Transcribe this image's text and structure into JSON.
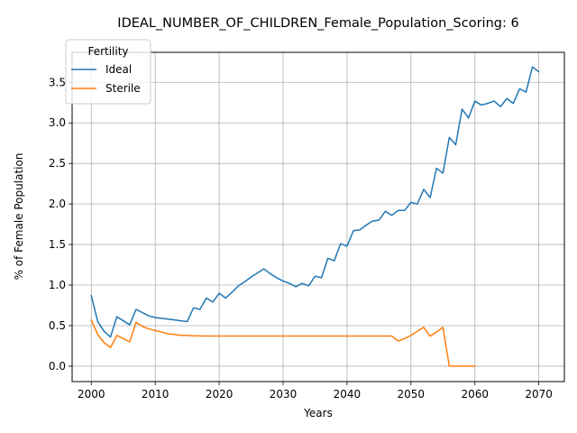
{
  "chart_data": {
    "type": "line",
    "title": "IDEAL_NUMBER_OF_CHILDREN_Female_Population_Scoring: 6",
    "xlabel": "Years",
    "ylabel": "% of Female Population",
    "xlim": [
      1997,
      2074
    ],
    "ylim": [
      -0.19,
      3.87
    ],
    "xticks": [
      2000,
      2010,
      2020,
      2030,
      2040,
      2050,
      2060,
      2070
    ],
    "yticks": [
      0.0,
      0.5,
      1.0,
      1.5,
      2.0,
      2.5,
      3.0,
      3.5
    ],
    "ytick_labels": [
      "0.0",
      "0.5",
      "1.0",
      "1.5",
      "2.0",
      "2.5",
      "3.0",
      "3.5"
    ],
    "grid": true,
    "legend": {
      "title": "Fertility",
      "placement": "top-left"
    },
    "series": [
      {
        "name": "Ideal",
        "color": "#1f77b4",
        "x": [
          2000,
          2001,
          2002,
          2003,
          2004,
          2005,
          2006,
          2007,
          2008,
          2009,
          2010,
          2011,
          2012,
          2013,
          2014,
          2015,
          2016,
          2017,
          2018,
          2019,
          2020,
          2021,
          2022,
          2023,
          2024,
          2025,
          2026,
          2027,
          2028,
          2029,
          2030,
          2031,
          2032,
          2033,
          2034,
          2035,
          2036,
          2037,
          2038,
          2039,
          2040,
          2041,
          2042,
          2043,
          2044,
          2045,
          2046,
          2047,
          2048,
          2049,
          2050,
          2051,
          2052,
          2053,
          2054,
          2055,
          2056,
          2057,
          2058,
          2059,
          2060,
          2061,
          2062,
          2063,
          2064,
          2065,
          2066,
          2067,
          2068,
          2069,
          2070
        ],
        "y": [
          0.87,
          0.55,
          0.43,
          0.36,
          0.61,
          0.56,
          0.51,
          0.7,
          0.66,
          0.62,
          0.6,
          0.59,
          0.58,
          0.57,
          0.56,
          0.55,
          0.72,
          0.7,
          0.84,
          0.79,
          0.9,
          0.84,
          0.91,
          0.99,
          1.04,
          1.1,
          1.15,
          1.2,
          1.14,
          1.09,
          1.05,
          1.02,
          0.98,
          1.02,
          0.99,
          1.11,
          1.09,
          1.33,
          1.3,
          1.51,
          1.48,
          1.67,
          1.68,
          1.74,
          1.79,
          1.8,
          1.91,
          1.86,
          1.92,
          1.92,
          2.02,
          2.0,
          2.18,
          2.08,
          2.44,
          2.38,
          2.82,
          2.73,
          3.17,
          3.06,
          3.27,
          3.22,
          3.24,
          3.27,
          3.2,
          3.3,
          3.24,
          3.42,
          3.38,
          3.69,
          3.63
        ]
      },
      {
        "name": "Sterile",
        "color": "#ff7f0e",
        "x": [
          2000,
          2001,
          2002,
          2003,
          2004,
          2005,
          2006,
          2007,
          2008,
          2009,
          2010,
          2011,
          2012,
          2013,
          2014,
          2015,
          2016,
          2017,
          2018,
          2019,
          2020,
          2021,
          2022,
          2023,
          2024,
          2025,
          2026,
          2027,
          2028,
          2029,
          2030,
          2031,
          2032,
          2033,
          2034,
          2035,
          2036,
          2037,
          2038,
          2039,
          2040,
          2041,
          2042,
          2043,
          2044,
          2045,
          2046,
          2047,
          2048,
          2049,
          2050,
          2051,
          2052,
          2053,
          2054,
          2055,
          2056,
          2057,
          2058,
          2059,
          2060
        ],
        "y": [
          0.57,
          0.39,
          0.29,
          0.23,
          0.38,
          0.34,
          0.3,
          0.54,
          0.49,
          0.46,
          0.44,
          0.42,
          0.4,
          0.39,
          0.38,
          0.38,
          0.375,
          0.373,
          0.372,
          0.372,
          0.372,
          0.372,
          0.372,
          0.372,
          0.372,
          0.372,
          0.372,
          0.372,
          0.372,
          0.372,
          0.372,
          0.372,
          0.372,
          0.372,
          0.372,
          0.372,
          0.372,
          0.372,
          0.372,
          0.372,
          0.372,
          0.372,
          0.372,
          0.372,
          0.372,
          0.372,
          0.372,
          0.372,
          0.31,
          0.34,
          0.38,
          0.43,
          0.48,
          0.37,
          0.42,
          0.48,
          0.0,
          0.0,
          0.0,
          0.0,
          0.0
        ]
      }
    ]
  }
}
